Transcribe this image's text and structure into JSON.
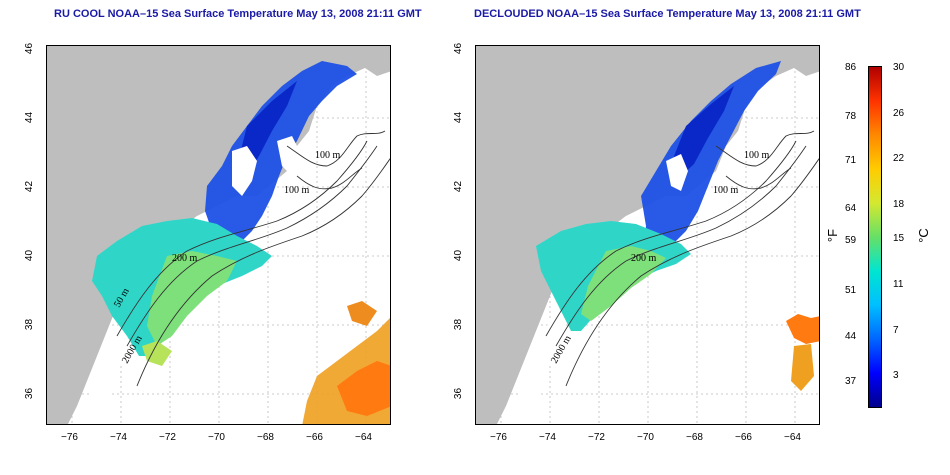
{
  "titles": {
    "left": "RU COOL NOAA–15 Sea Surface Temperature May 13, 2008 21:11 GMT",
    "right": "DECLOUDED NOAA–15 Sea Surface Temperature May 13, 2008 21:11 GMT"
  },
  "axes": {
    "x_ticks": [
      "−76",
      "−74",
      "−72",
      "−70",
      "−68",
      "−66",
      "−64"
    ],
    "y_ticks": [
      "46",
      "44",
      "42",
      "40",
      "38",
      "36"
    ]
  },
  "contours": {
    "labels_left": [
      "100 m",
      "100 m",
      "200 m",
      "50 m",
      "2000 m"
    ],
    "labels_right": [
      "100 m",
      "100 m",
      "200 m",
      "2000 m"
    ]
  },
  "colorbar": {
    "fahrenheit_ticks": [
      "86",
      "78",
      "71",
      "64",
      "59",
      "51",
      "44",
      "37"
    ],
    "celsius_ticks": [
      "30",
      "26",
      "22",
      "18",
      "15",
      "11",
      "7",
      "3"
    ],
    "fahrenheit_unit": "°F",
    "celsius_unit": "°C",
    "colors": [
      "#00008b",
      "#0000ff",
      "#0066ff",
      "#00bfff",
      "#00e5d0",
      "#66e066",
      "#d4e830",
      "#ffcc00",
      "#ff8800",
      "#ff3300",
      "#b00000"
    ]
  },
  "colors": {
    "land": "#bebebe",
    "title": "#1a1aa6"
  }
}
